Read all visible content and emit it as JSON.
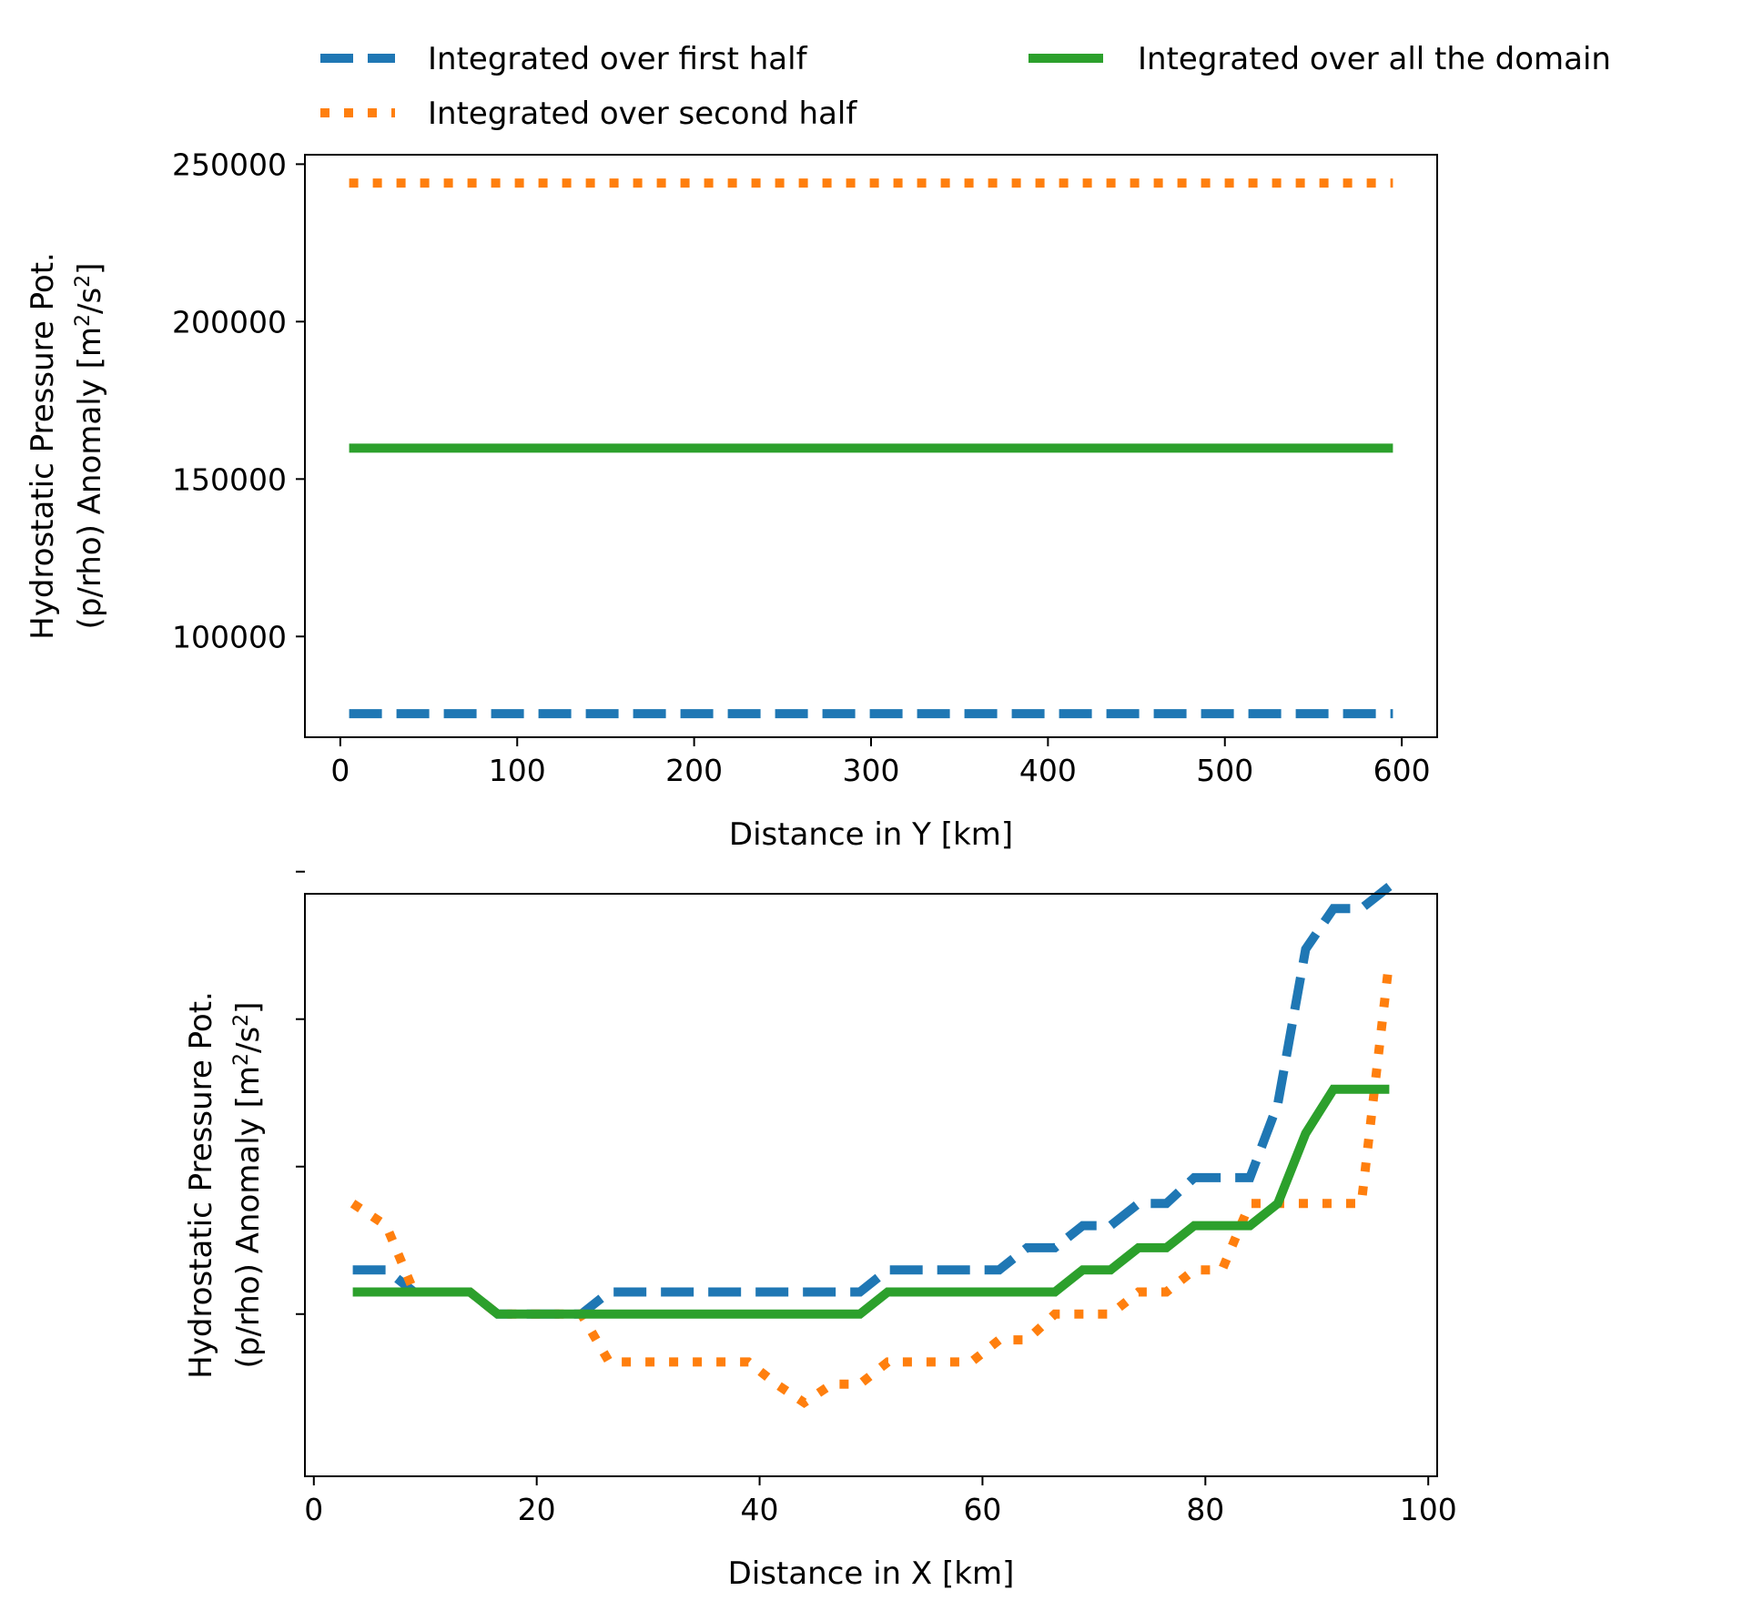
{
  "legend": {
    "placement": "top",
    "entries": [
      {
        "label": "Integrated over first half",
        "color": "#1f77b4",
        "style": "dashed"
      },
      {
        "label": "Integrated over all the domain",
        "color": "#2ca02c",
        "style": "solid"
      },
      {
        "label": "Integrated over second half",
        "color": "#ff7f0e",
        "style": "dotted"
      }
    ]
  },
  "chart_data": [
    {
      "type": "line",
      "xlabel": "Distance in Y [km]",
      "ylabel_line1": "Hydrostatic Pressure Pot.",
      "ylabel_line2_prefix": "(p/rho) Anomaly [m",
      "ylabel_sup1": "2",
      "ylabel_mid": "/s",
      "ylabel_sup2": "2",
      "ylabel_suffix": "]",
      "xlim": [
        -20,
        620
      ],
      "ylim": [
        68000,
        253000
      ],
      "xticks": [
        0,
        100,
        200,
        300,
        400,
        500,
        600
      ],
      "xtick_labels": [
        "0",
        "100",
        "200",
        "300",
        "400",
        "500",
        "600"
      ],
      "yticks": [
        100000,
        150000,
        200000,
        250000
      ],
      "ytick_labels": [
        "100000",
        "150000",
        "200000",
        "250000"
      ],
      "grid": false,
      "series": [
        {
          "name": "Integrated over first half",
          "color": "#1f77b4",
          "style": "dashed",
          "x": [
            5,
            595
          ],
          "y": [
            75500,
            75500
          ]
        },
        {
          "name": "Integrated over second half",
          "color": "#ff7f0e",
          "style": "dotted",
          "x": [
            5,
            595
          ],
          "y": [
            244000,
            244000
          ]
        },
        {
          "name": "Integrated over all the domain",
          "color": "#2ca02c",
          "style": "solid",
          "x": [
            5,
            595
          ],
          "y": [
            159800,
            159800
          ]
        }
      ]
    },
    {
      "type": "line",
      "xlabel": "Distance in X [km]",
      "ylabel_line1": "Hydrostatic Pressure Pot.",
      "ylabel_line2_prefix": "(p/rho) Anomaly [m",
      "ylabel_sup1": "2",
      "ylabel_mid": "/s",
      "ylabel_sup2": "2",
      "ylabel_suffix": "]",
      "xlim": [
        -0.8,
        100.8
      ],
      "ylim": [
        -2.2,
        5.7
      ],
      "xticks": [
        0,
        20,
        40,
        60,
        80,
        100
      ],
      "xtick_labels": [
        "0",
        "20",
        "40",
        "60",
        "80",
        "100"
      ],
      "yticks": [
        0,
        2,
        4,
        6
      ],
      "ytick_labels": [
        "",
        "",
        "",
        ""
      ],
      "grid": false,
      "series": [
        {
          "name": "Integrated over first half",
          "color": "#1f77b4",
          "style": "dashed",
          "x": [
            3.5,
            6.5,
            9,
            11.5,
            14,
            16.5,
            19,
            21.5,
            24,
            26.5,
            29,
            31.5,
            34,
            36.5,
            39,
            41.5,
            44,
            46.5,
            49,
            51.5,
            54,
            56.5,
            59,
            61.5,
            64,
            66.5,
            69,
            71.5,
            74,
            76.5,
            79,
            81.5,
            84,
            86.5,
            89,
            91.5,
            94,
            96.5
          ],
          "y": [
            0.6,
            0.6,
            0.3,
            0.3,
            0.3,
            0,
            0,
            0,
            0,
            0.3,
            0.3,
            0.3,
            0.3,
            0.3,
            0.3,
            0.3,
            0.3,
            0.3,
            0.3,
            0.6,
            0.6,
            0.6,
            0.6,
            0.6,
            0.9,
            0.9,
            1.2,
            1.2,
            1.5,
            1.5,
            1.85,
            1.85,
            1.85,
            2.85,
            4.95,
            5.5,
            5.5,
            5.8
          ]
        },
        {
          "name": "Integrated over second half",
          "color": "#ff7f0e",
          "style": "dotted",
          "x": [
            3.5,
            6.5,
            9,
            11.5,
            14,
            16.5,
            19,
            21.5,
            24,
            26.5,
            29,
            31.5,
            34,
            36.5,
            39,
            41.5,
            44,
            46.5,
            49,
            51.5,
            54,
            56.5,
            59,
            61.5,
            64,
            66.5,
            69,
            71.5,
            74,
            76.5,
            79,
            81.5,
            84,
            86.5,
            89,
            91.5,
            94,
            96.5
          ],
          "y": [
            1.5,
            1.2,
            0.3,
            0.3,
            0.3,
            0,
            0,
            0,
            0,
            -0.65,
            -0.65,
            -0.65,
            -0.65,
            -0.65,
            -0.65,
            -0.95,
            -1.2,
            -0.95,
            -0.95,
            -0.65,
            -0.65,
            -0.65,
            -0.65,
            -0.35,
            -0.35,
            0,
            0,
            0,
            0.3,
            0.3,
            0.6,
            0.6,
            1.5,
            1.5,
            1.5,
            1.5,
            1.5,
            4.8
          ]
        },
        {
          "name": "Integrated over all the domain",
          "color": "#2ca02c",
          "style": "solid",
          "x": [
            3.5,
            6.5,
            9,
            11.5,
            14,
            16.5,
            19,
            21.5,
            24,
            26.5,
            29,
            31.5,
            34,
            36.5,
            39,
            41.5,
            44,
            46.5,
            49,
            51.5,
            54,
            56.5,
            59,
            61.5,
            64,
            66.5,
            69,
            71.5,
            74,
            76.5,
            79,
            81.5,
            84,
            86.5,
            89,
            91.5,
            94,
            96.5
          ],
          "y": [
            0.3,
            0.3,
            0.3,
            0.3,
            0.3,
            0,
            0,
            0,
            0,
            0,
            0,
            0,
            0,
            0,
            0,
            0,
            0,
            0,
            0,
            0.3,
            0.3,
            0.3,
            0.3,
            0.3,
            0.3,
            0.3,
            0.6,
            0.6,
            0.9,
            0.9,
            1.2,
            1.2,
            1.2,
            1.5,
            2.45,
            3.05,
            3.05,
            3.05
          ]
        }
      ]
    }
  ]
}
